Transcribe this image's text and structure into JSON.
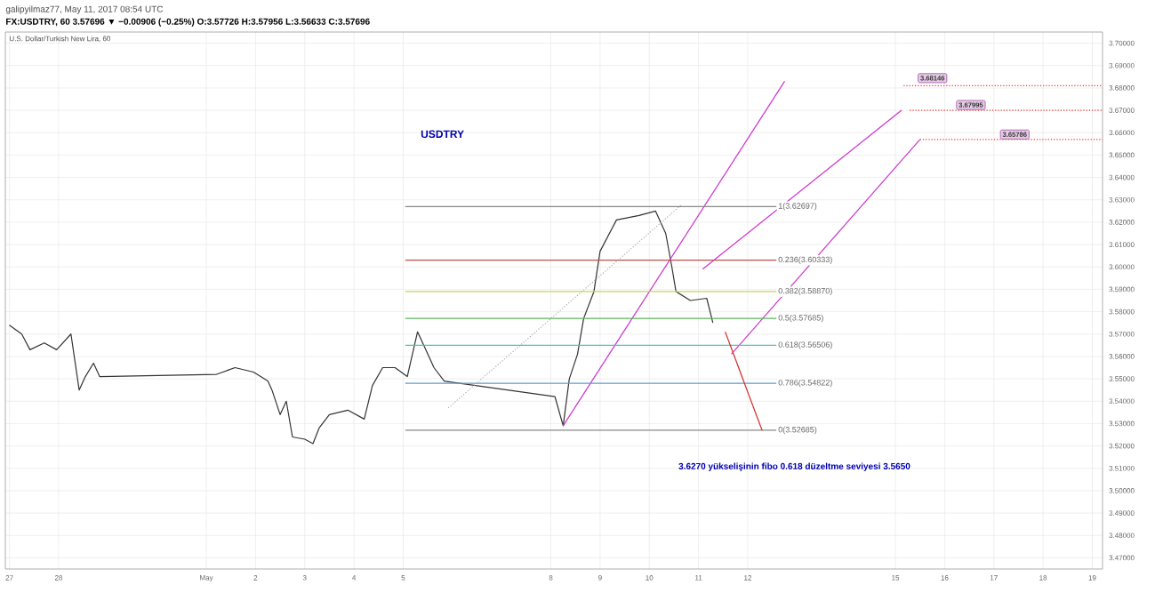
{
  "chart_data": {
    "type": "line",
    "title": "galipyilmaz77, May 11, 2017 08:54 UTC",
    "subtitle": "FX:USDTRY, 60 3.57696 ▼ −0.00906 (−0.25%) O:3.57726 H:3.57956 L:3.56633 C:3.57696",
    "xlim": [
      "2017-04-26T22:00",
      "2017-05-19T05:00"
    ],
    "xticks": [
      {
        "value": "2017-04-27",
        "label": "27"
      },
      {
        "value": "2017-04-28",
        "label": "28"
      },
      {
        "value": "2017-05-01",
        "label": "May"
      },
      {
        "value": "2017-05-02",
        "label": "2"
      },
      {
        "value": "2017-05-03",
        "label": "3"
      },
      {
        "value": "2017-05-04",
        "label": "4"
      },
      {
        "value": "2017-05-05",
        "label": "5"
      },
      {
        "value": "2017-05-08",
        "label": "8"
      },
      {
        "value": "2017-05-09",
        "label": "9"
      },
      {
        "value": "2017-05-10",
        "label": "10"
      },
      {
        "value": "2017-05-11",
        "label": "11"
      },
      {
        "value": "2017-05-12",
        "label": "12"
      },
      {
        "value": "2017-05-15",
        "label": "15"
      },
      {
        "value": "2017-05-16",
        "label": "16"
      },
      {
        "value": "2017-05-17",
        "label": "17"
      },
      {
        "value": "2017-05-18",
        "label": "18"
      },
      {
        "value": "2017-05-19",
        "label": "19"
      }
    ],
    "ylim": [
      3.465,
      3.705
    ],
    "yticks": [
      {
        "value": 3.47,
        "label": "3.47000"
      },
      {
        "value": 3.48,
        "label": "3.48000"
      },
      {
        "value": 3.49,
        "label": "3.49000"
      },
      {
        "value": 3.5,
        "label": "3.50000"
      },
      {
        "value": 3.51,
        "label": "3.51000"
      },
      {
        "value": 3.52,
        "label": "3.52000"
      },
      {
        "value": 3.53,
        "label": "3.53000"
      },
      {
        "value": 3.54,
        "label": "3.54000"
      },
      {
        "value": 3.55,
        "label": "3.55000"
      },
      {
        "value": 3.56,
        "label": "3.56000"
      },
      {
        "value": 3.57,
        "label": "3.57000"
      },
      {
        "value": 3.58,
        "label": "3.58000"
      },
      {
        "value": 3.59,
        "label": "3.59000"
      },
      {
        "value": 3.6,
        "label": "3.60000"
      },
      {
        "value": 3.61,
        "label": "3.61000"
      },
      {
        "value": 3.62,
        "label": "3.62000"
      },
      {
        "value": 3.63,
        "label": "3.63000"
      },
      {
        "value": 3.64,
        "label": "3.64000"
      },
      {
        "value": 3.65,
        "label": "3.65000"
      },
      {
        "value": 3.66,
        "label": "3.66000"
      },
      {
        "value": 3.67,
        "label": "3.67000"
      },
      {
        "value": 3.68,
        "label": "3.68000"
      },
      {
        "value": 3.69,
        "label": "3.69000"
      },
      {
        "value": 3.7,
        "label": "3.70000"
      }
    ],
    "grid": true,
    "series": [
      {
        "color": "#333333",
        "x": [
          "2017-04-27T00:00",
          "2017-04-27T06:00",
          "2017-04-27T10:00",
          "2017-04-27T17:00",
          "2017-04-27T23:00",
          "2017-04-28T05:00",
          "2017-04-28T06:00",
          "2017-04-28T10:00",
          "2017-04-28T13:00",
          "2017-04-28T17:00",
          "2017-04-28T20:00",
          "2017-05-01T05:00",
          "2017-05-01T14:00",
          "2017-05-01T23:00",
          "2017-05-02T06:00",
          "2017-05-02T08:00",
          "2017-05-02T12:00",
          "2017-05-02T15:00",
          "2017-05-02T18:00",
          "2017-05-03T00:00",
          "2017-05-03T04:00",
          "2017-05-03T07:00",
          "2017-05-03T12:00",
          "2017-05-03T21:00",
          "2017-05-04T05:00",
          "2017-05-04T09:00",
          "2017-05-04T14:00",
          "2017-05-04T20:00",
          "2017-05-05T02:00",
          "2017-05-05T07:00",
          "2017-05-05T11:00",
          "2017-05-05T15:00",
          "2017-05-05T20:00",
          "2017-05-08T02:00",
          "2017-05-08T06:00",
          "2017-05-08T09:00",
          "2017-05-08T13:00",
          "2017-05-08T16:00",
          "2017-05-08T21:00",
          "2017-05-09T00:00",
          "2017-05-09T08:00",
          "2017-05-09T19:00",
          "2017-05-10T03:00",
          "2017-05-10T08:00",
          "2017-05-10T11:00",
          "2017-05-10T13:00",
          "2017-05-10T20:00",
          "2017-05-11T04:00",
          "2017-05-11T07:00"
        ],
        "values": [
          3.574,
          3.57,
          3.563,
          3.566,
          3.563,
          3.569,
          3.57,
          3.545,
          3.551,
          3.557,
          3.551,
          3.552,
          3.555,
          3.553,
          3.549,
          3.545,
          3.534,
          3.54,
          3.524,
          3.523,
          3.521,
          3.528,
          3.534,
          3.536,
          3.532,
          3.547,
          3.555,
          3.555,
          3.551,
          3.571,
          3.563,
          3.555,
          3.549,
          3.542,
          3.529,
          3.55,
          3.561,
          3.577,
          3.589,
          3.607,
          3.621,
          3.623,
          3.625,
          3.615,
          3.6,
          3.589,
          3.585,
          3.586,
          3.575
        ]
      },
      {
        "color": "#cc33cc",
        "x": [
          "2017-05-08T06:00",
          "2017-05-12T18:00"
        ],
        "values": [
          3.529,
          3.683
        ]
      },
      {
        "color": "#cc33cc",
        "x": [
          "2017-05-11T02:00",
          "2017-05-15T03:00"
        ],
        "values": [
          3.599,
          3.67
        ]
      },
      {
        "color": "#cc33cc",
        "x": [
          "2017-05-11T16:00",
          "2017-05-15T12:00"
        ],
        "values": [
          3.561,
          3.657
        ]
      },
      {
        "color": "#aaaaaa",
        "line_style": "dotted",
        "x": [
          "2017-05-05T22:00",
          "2017-05-10T16:00"
        ],
        "values": [
          3.537,
          3.628
        ]
      },
      {
        "color": "#888888",
        "x": [
          "2017-05-05T01:00",
          "2017-05-12T14:00"
        ],
        "values": [
          3.627,
          3.627
        ]
      },
      {
        "color": "#c0504d",
        "x": [
          "2017-05-05T01:00",
          "2017-05-12T14:00"
        ],
        "values": [
          3.603,
          3.603
        ]
      },
      {
        "color": "#c5d35a",
        "x": [
          "2017-05-05T01:00",
          "2017-05-12T14:00"
        ],
        "values": [
          3.589,
          3.589
        ]
      },
      {
        "color": "#5cb85c",
        "x": [
          "2017-05-05T01:00",
          "2017-05-12T14:00"
        ],
        "values": [
          3.577,
          3.577
        ]
      },
      {
        "color": "#4ec3b0",
        "x": [
          "2017-05-05T01:00",
          "2017-05-12T14:00"
        ],
        "values": [
          3.565,
          3.565
        ]
      },
      {
        "color": "#5b9bd5",
        "x": [
          "2017-05-05T01:00",
          "2017-05-12T14:00"
        ],
        "values": [
          3.548,
          3.548
        ]
      },
      {
        "color": "#888888",
        "x": [
          "2017-05-05T01:00",
          "2017-05-12T14:00"
        ],
        "values": [
          3.527,
          3.527
        ]
      },
      {
        "color": "#e53935",
        "line_style": "dotted",
        "x": [
          "2017-05-15T04:00",
          "2017-05-19T05:00"
        ],
        "values": [
          3.681,
          3.681
        ]
      },
      {
        "color": "#e53935",
        "line_style": "dotted",
        "x": [
          "2017-05-15T07:00",
          "2017-05-19T05:00"
        ],
        "values": [
          3.67,
          3.67
        ]
      },
      {
        "color": "#e53935",
        "line_style": "dotted",
        "x": [
          "2017-05-15T12:00",
          "2017-05-19T05:00"
        ],
        "values": [
          3.657,
          3.657
        ]
      },
      {
        "color": "#d32f2f",
        "x": [
          "2017-05-11T13:00",
          "2017-05-12T07:00"
        ],
        "values": [
          3.571,
          3.527
        ]
      }
    ],
    "annotations": [
      "U.S. Dollar/Turkish New Lira, 60",
      "USDTRY",
      {
        "text": "1(3.62697)",
        "x": "2017-05-12T14:00",
        "y": 3.627
      },
      {
        "text": "0.236(3.60333)",
        "x": "2017-05-12T14:00",
        "y": 3.603
      },
      {
        "text": "0.382(3.58870)",
        "x": "2017-05-12T14:00",
        "y": 3.589
      },
      {
        "text": "0.5(3.57685)",
        "x": "2017-05-12T14:00",
        "y": 3.577
      },
      {
        "text": "0.618(3.56506)",
        "x": "2017-05-12T14:00",
        "y": 3.565
      },
      {
        "text": "0.786(3.54822)",
        "x": "2017-05-12T14:00",
        "y": 3.548
      },
      {
        "text": "0(3.52685)",
        "x": "2017-05-12T14:00",
        "y": 3.527
      },
      "3.68146",
      "3.67995",
      "3.65786",
      "3.6270 yükselişinin fibo 0.618 düzeltme seviyesi 3.5650"
    ]
  }
}
